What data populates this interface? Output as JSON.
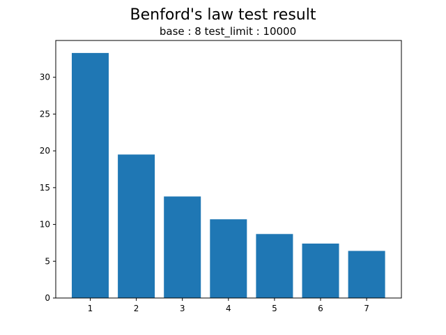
{
  "chart_data": {
    "type": "bar",
    "title": "Benford's law test result",
    "subtitle": "base : 8 test_limit : 10000",
    "xlabel": "",
    "ylabel": "",
    "categories": [
      "1",
      "2",
      "3",
      "4",
      "5",
      "6",
      "7"
    ],
    "values": [
      33.3,
      19.5,
      13.8,
      10.7,
      8.7,
      7.4,
      6.4
    ],
    "ylim": [
      0,
      35.0
    ],
    "yticks": [
      0,
      5,
      10,
      15,
      20,
      25,
      30
    ],
    "bar_color": "#1f77b4",
    "grid": false,
    "legend": "none"
  }
}
